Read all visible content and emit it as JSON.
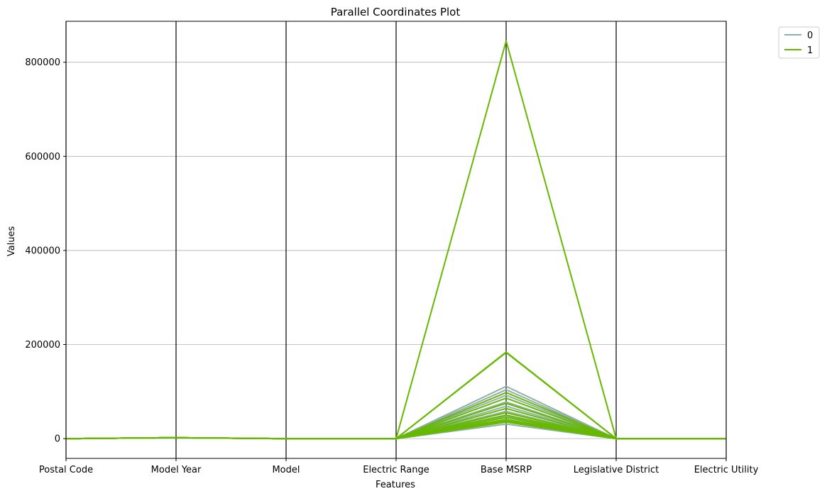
{
  "chart_data": {
    "type": "parallel_coordinates",
    "title": "Parallel Coordinates Plot",
    "xlabel": "Features",
    "ylabel": "Values",
    "categories": [
      "Postal Code",
      "Model Year",
      "Model",
      "Electric Range",
      "Base MSRP",
      "Legislative District",
      "Electric Utility"
    ],
    "ylim": [
      -42000,
      887000
    ],
    "yticks": [
      0,
      200000,
      400000,
      600000,
      800000
    ],
    "ytick_labels": [
      "0",
      "200000",
      "400000",
      "600000",
      "800000"
    ],
    "grid": "horizontal",
    "legend_position": "top-right-outside",
    "series": [
      {
        "name": "0",
        "color": "#8fb0a8",
        "lines": [
          [
            0,
            2020,
            0,
            0,
            111000,
            0,
            0
          ],
          [
            0,
            2020,
            0,
            0,
            104000,
            0,
            0
          ],
          [
            0,
            2020,
            0,
            0,
            92000,
            0,
            0
          ],
          [
            0,
            2020,
            0,
            0,
            78000,
            0,
            0
          ],
          [
            0,
            2020,
            0,
            0,
            69000,
            0,
            0
          ],
          [
            0,
            2020,
            0,
            0,
            58000,
            0,
            0
          ],
          [
            0,
            2020,
            0,
            0,
            47000,
            0,
            0
          ],
          [
            0,
            2020,
            0,
            0,
            36000,
            0,
            0
          ],
          [
            0,
            2020,
            0,
            0,
            31000,
            0,
            0
          ]
        ]
      },
      {
        "name": "1",
        "color": "#66b800",
        "lines": [
          [
            0,
            2020,
            0,
            0,
            845000,
            0,
            0
          ],
          [
            0,
            2020,
            0,
            0,
            184000,
            0,
            0
          ],
          [
            0,
            2020,
            0,
            0,
            183000,
            0,
            0
          ],
          [
            0,
            2020,
            0,
            0,
            98000,
            0,
            0
          ],
          [
            0,
            2020,
            0,
            0,
            86000,
            0,
            0
          ],
          [
            0,
            2020,
            0,
            0,
            75000,
            0,
            0
          ],
          [
            0,
            2020,
            0,
            0,
            64000,
            0,
            0
          ],
          [
            0,
            2020,
            0,
            0,
            55000,
            0,
            0
          ],
          [
            0,
            2020,
            0,
            0,
            50000,
            0,
            0
          ],
          [
            0,
            2020,
            0,
            0,
            45000,
            0,
            0
          ],
          [
            0,
            2020,
            0,
            0,
            41000,
            0,
            0
          ],
          [
            0,
            2020,
            0,
            0,
            38000,
            0,
            0
          ],
          [
            0,
            2020,
            0,
            0,
            35000,
            0,
            0
          ]
        ]
      }
    ]
  }
}
